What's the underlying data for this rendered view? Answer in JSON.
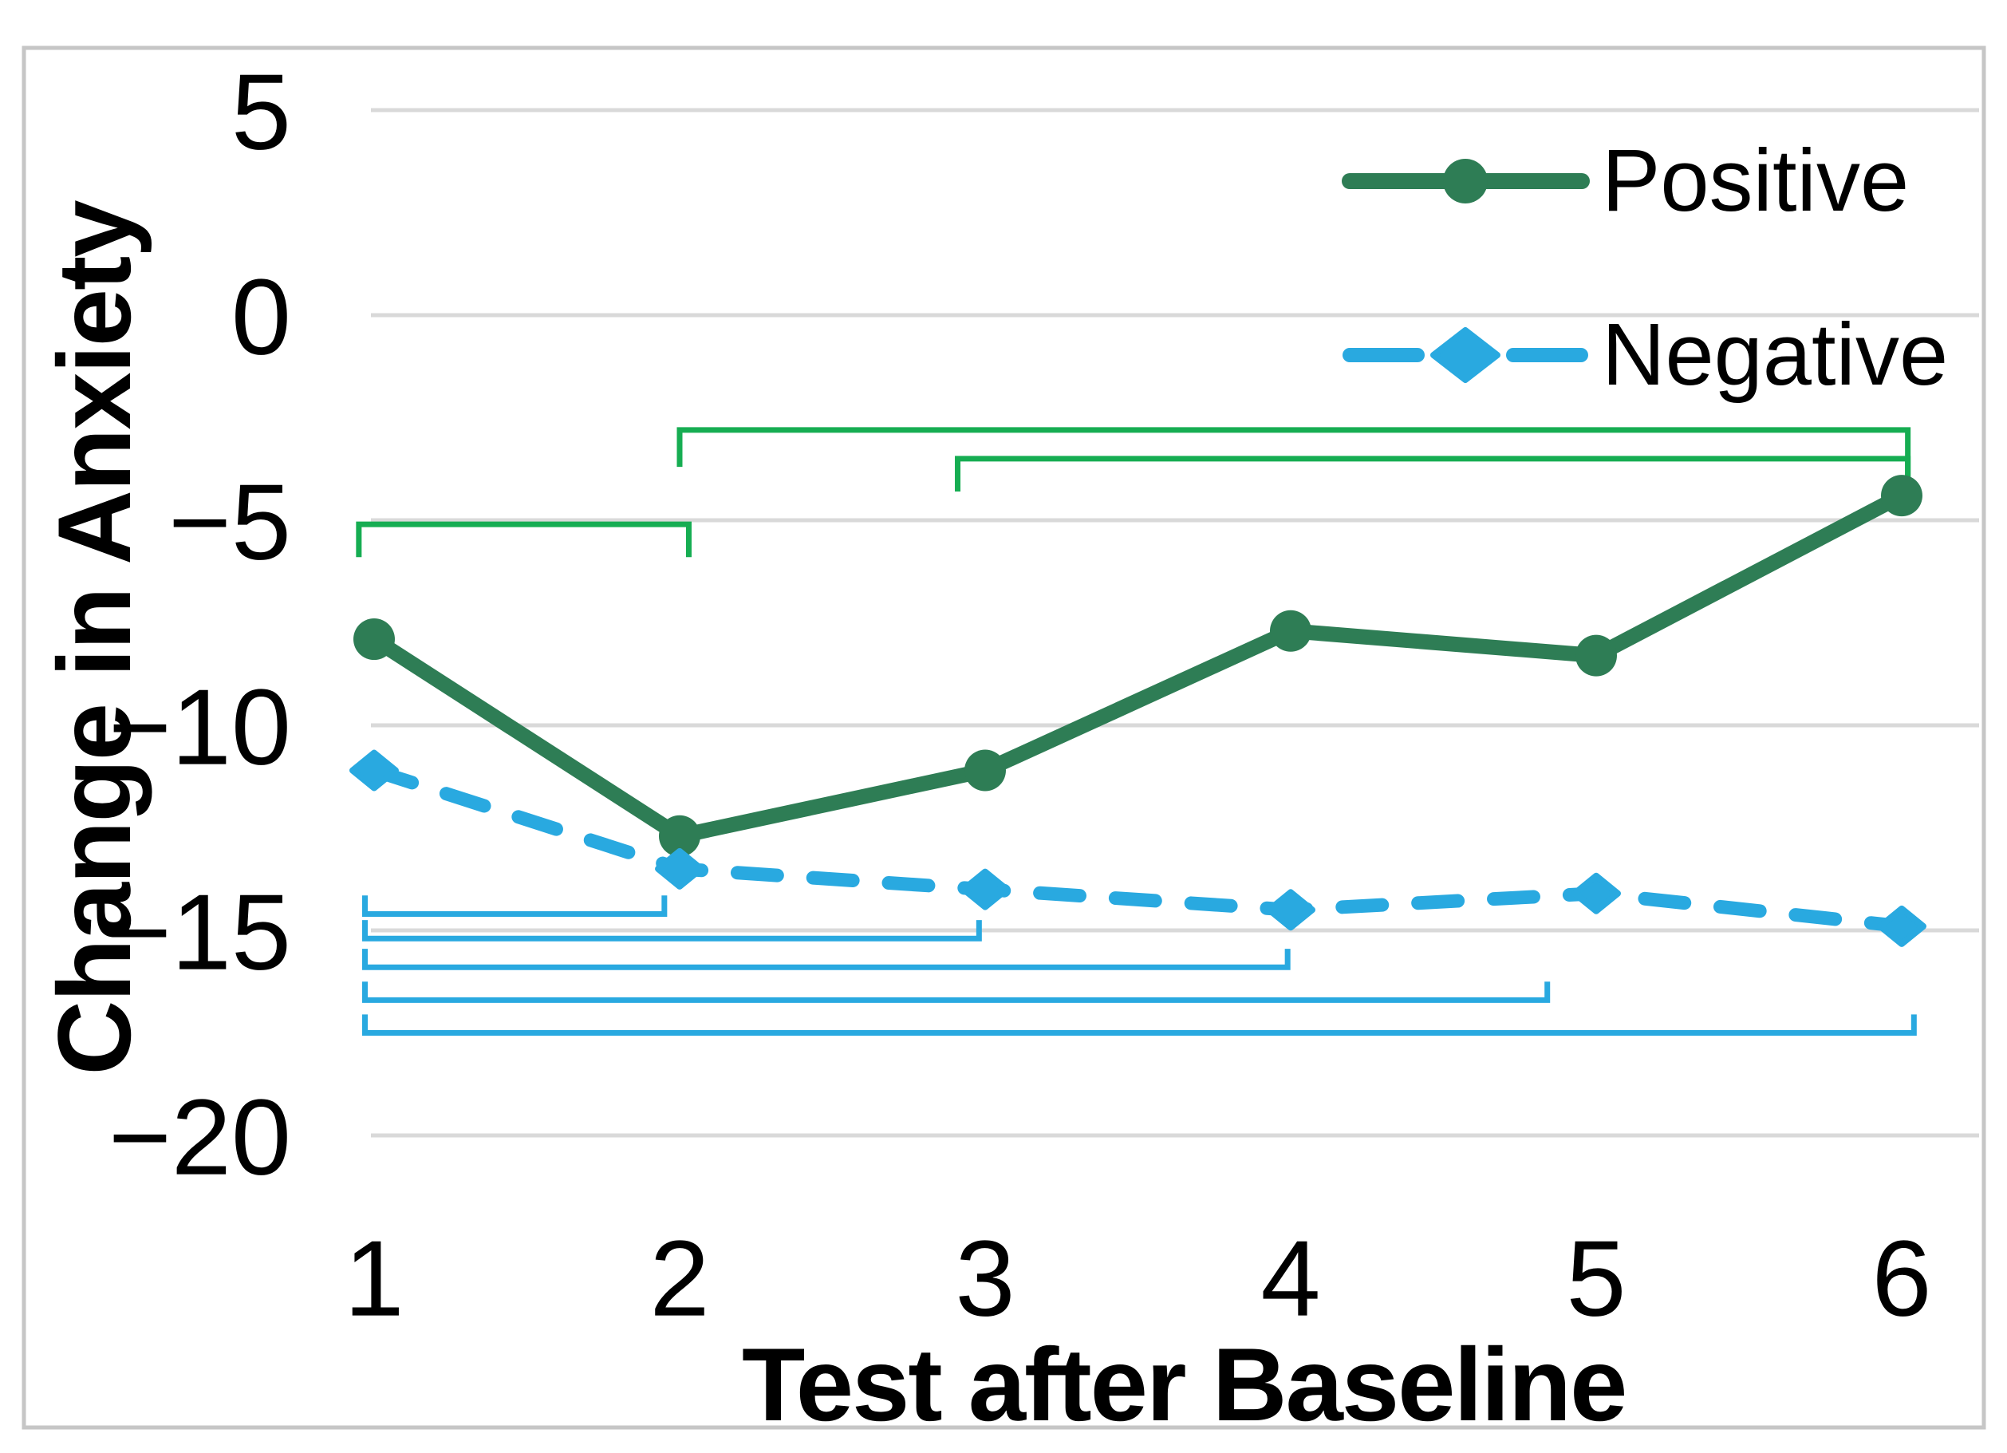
{
  "figure": {
    "y_axis": {
      "title": "Change in Anxiety",
      "tick_labels": [
        "5",
        "0",
        "−5",
        "−10",
        "−15",
        "−20"
      ]
    },
    "x_axis": {
      "title": "Test after Baseline",
      "tick_labels": [
        "1",
        "2",
        "3",
        "4",
        "5",
        "6"
      ]
    },
    "legend": [
      {
        "label": "Positive"
      },
      {
        "label": "Negative"
      }
    ]
  },
  "chart_data": {
    "type": "line",
    "title": "",
    "xlabel": "Test after Baseline",
    "ylabel": "Change in Anxiety",
    "x": [
      1,
      2,
      3,
      4,
      5,
      6
    ],
    "xtick_labels": [
      "1",
      "2",
      "3",
      "4",
      "5",
      "6"
    ],
    "yticks": [
      5,
      0,
      -5,
      -10,
      -15,
      -20
    ],
    "ytick_labels": [
      "5",
      "0",
      "−5",
      "−10",
      "−15",
      "−20"
    ],
    "ylim": [
      -20,
      5
    ],
    "grid": "horizontal",
    "legend_position": "upper-right-inside",
    "series": [
      {
        "name": "Positive",
        "color": "#2E7D55",
        "line_style": "solid",
        "marker": "circle",
        "values": [
          -7.9,
          -12.7,
          -11.1,
          -7.7,
          -8.3,
          -4.4
        ]
      },
      {
        "name": "Negative",
        "color": "#29A9E0",
        "line_style": "dashed",
        "marker": "diamond",
        "values": [
          -11.1,
          -13.5,
          -14.0,
          -14.5,
          -14.1,
          -14.9
        ]
      }
    ],
    "significance_brackets": [
      {
        "id": "positive-1-2",
        "color": "#16AD52",
        "x1": 0.95,
        "x2": 2.03,
        "level": -5.1,
        "tick_direction": "down",
        "tick1_len": 0.8,
        "tick2_len": 0.8
      },
      {
        "id": "positive-2-6",
        "color": "#16AD52",
        "x1": 2.0,
        "x2": 6.02,
        "level": -2.8,
        "tick_direction": "down",
        "tick1_len": 0.9,
        "tick2_len": 1.45
      },
      {
        "id": "positive-3-6",
        "color": "#16AD52",
        "x1": 2.91,
        "x2": 6.02,
        "level": -3.5,
        "tick_direction": "down",
        "tick1_len": 0.8,
        "tick2_len": 0.72
      },
      {
        "id": "negative-1-2",
        "color": "#29A9E0",
        "x1": 0.97,
        "x2": 1.95,
        "level": -14.6,
        "tick_direction": "up",
        "tick1_len": 0.45,
        "tick2_len": 0.45
      },
      {
        "id": "negative-1-3",
        "color": "#29A9E0",
        "x1": 0.97,
        "x2": 2.98,
        "level": -15.2,
        "tick_direction": "up",
        "tick1_len": 0.45,
        "tick2_len": 0.45
      },
      {
        "id": "negative-1-4",
        "color": "#29A9E0",
        "x1": 0.97,
        "x2": 3.99,
        "level": -15.9,
        "tick_direction": "up",
        "tick1_len": 0.45,
        "tick2_len": 0.45
      },
      {
        "id": "negative-1-5",
        "color": "#29A9E0",
        "x1": 0.97,
        "x2": 4.84,
        "level": -16.7,
        "tick_direction": "up",
        "tick1_len": 0.45,
        "tick2_len": 0.45
      },
      {
        "id": "negative-1-6",
        "color": "#29A9E0",
        "x1": 0.97,
        "x2": 6.04,
        "level": -17.5,
        "tick_direction": "up",
        "tick1_len": 0.45,
        "tick2_len": 0.45
      }
    ],
    "colors": {
      "grid": "#D9D9D9",
      "frame": "#C6C6C6",
      "text": "#000000"
    }
  }
}
